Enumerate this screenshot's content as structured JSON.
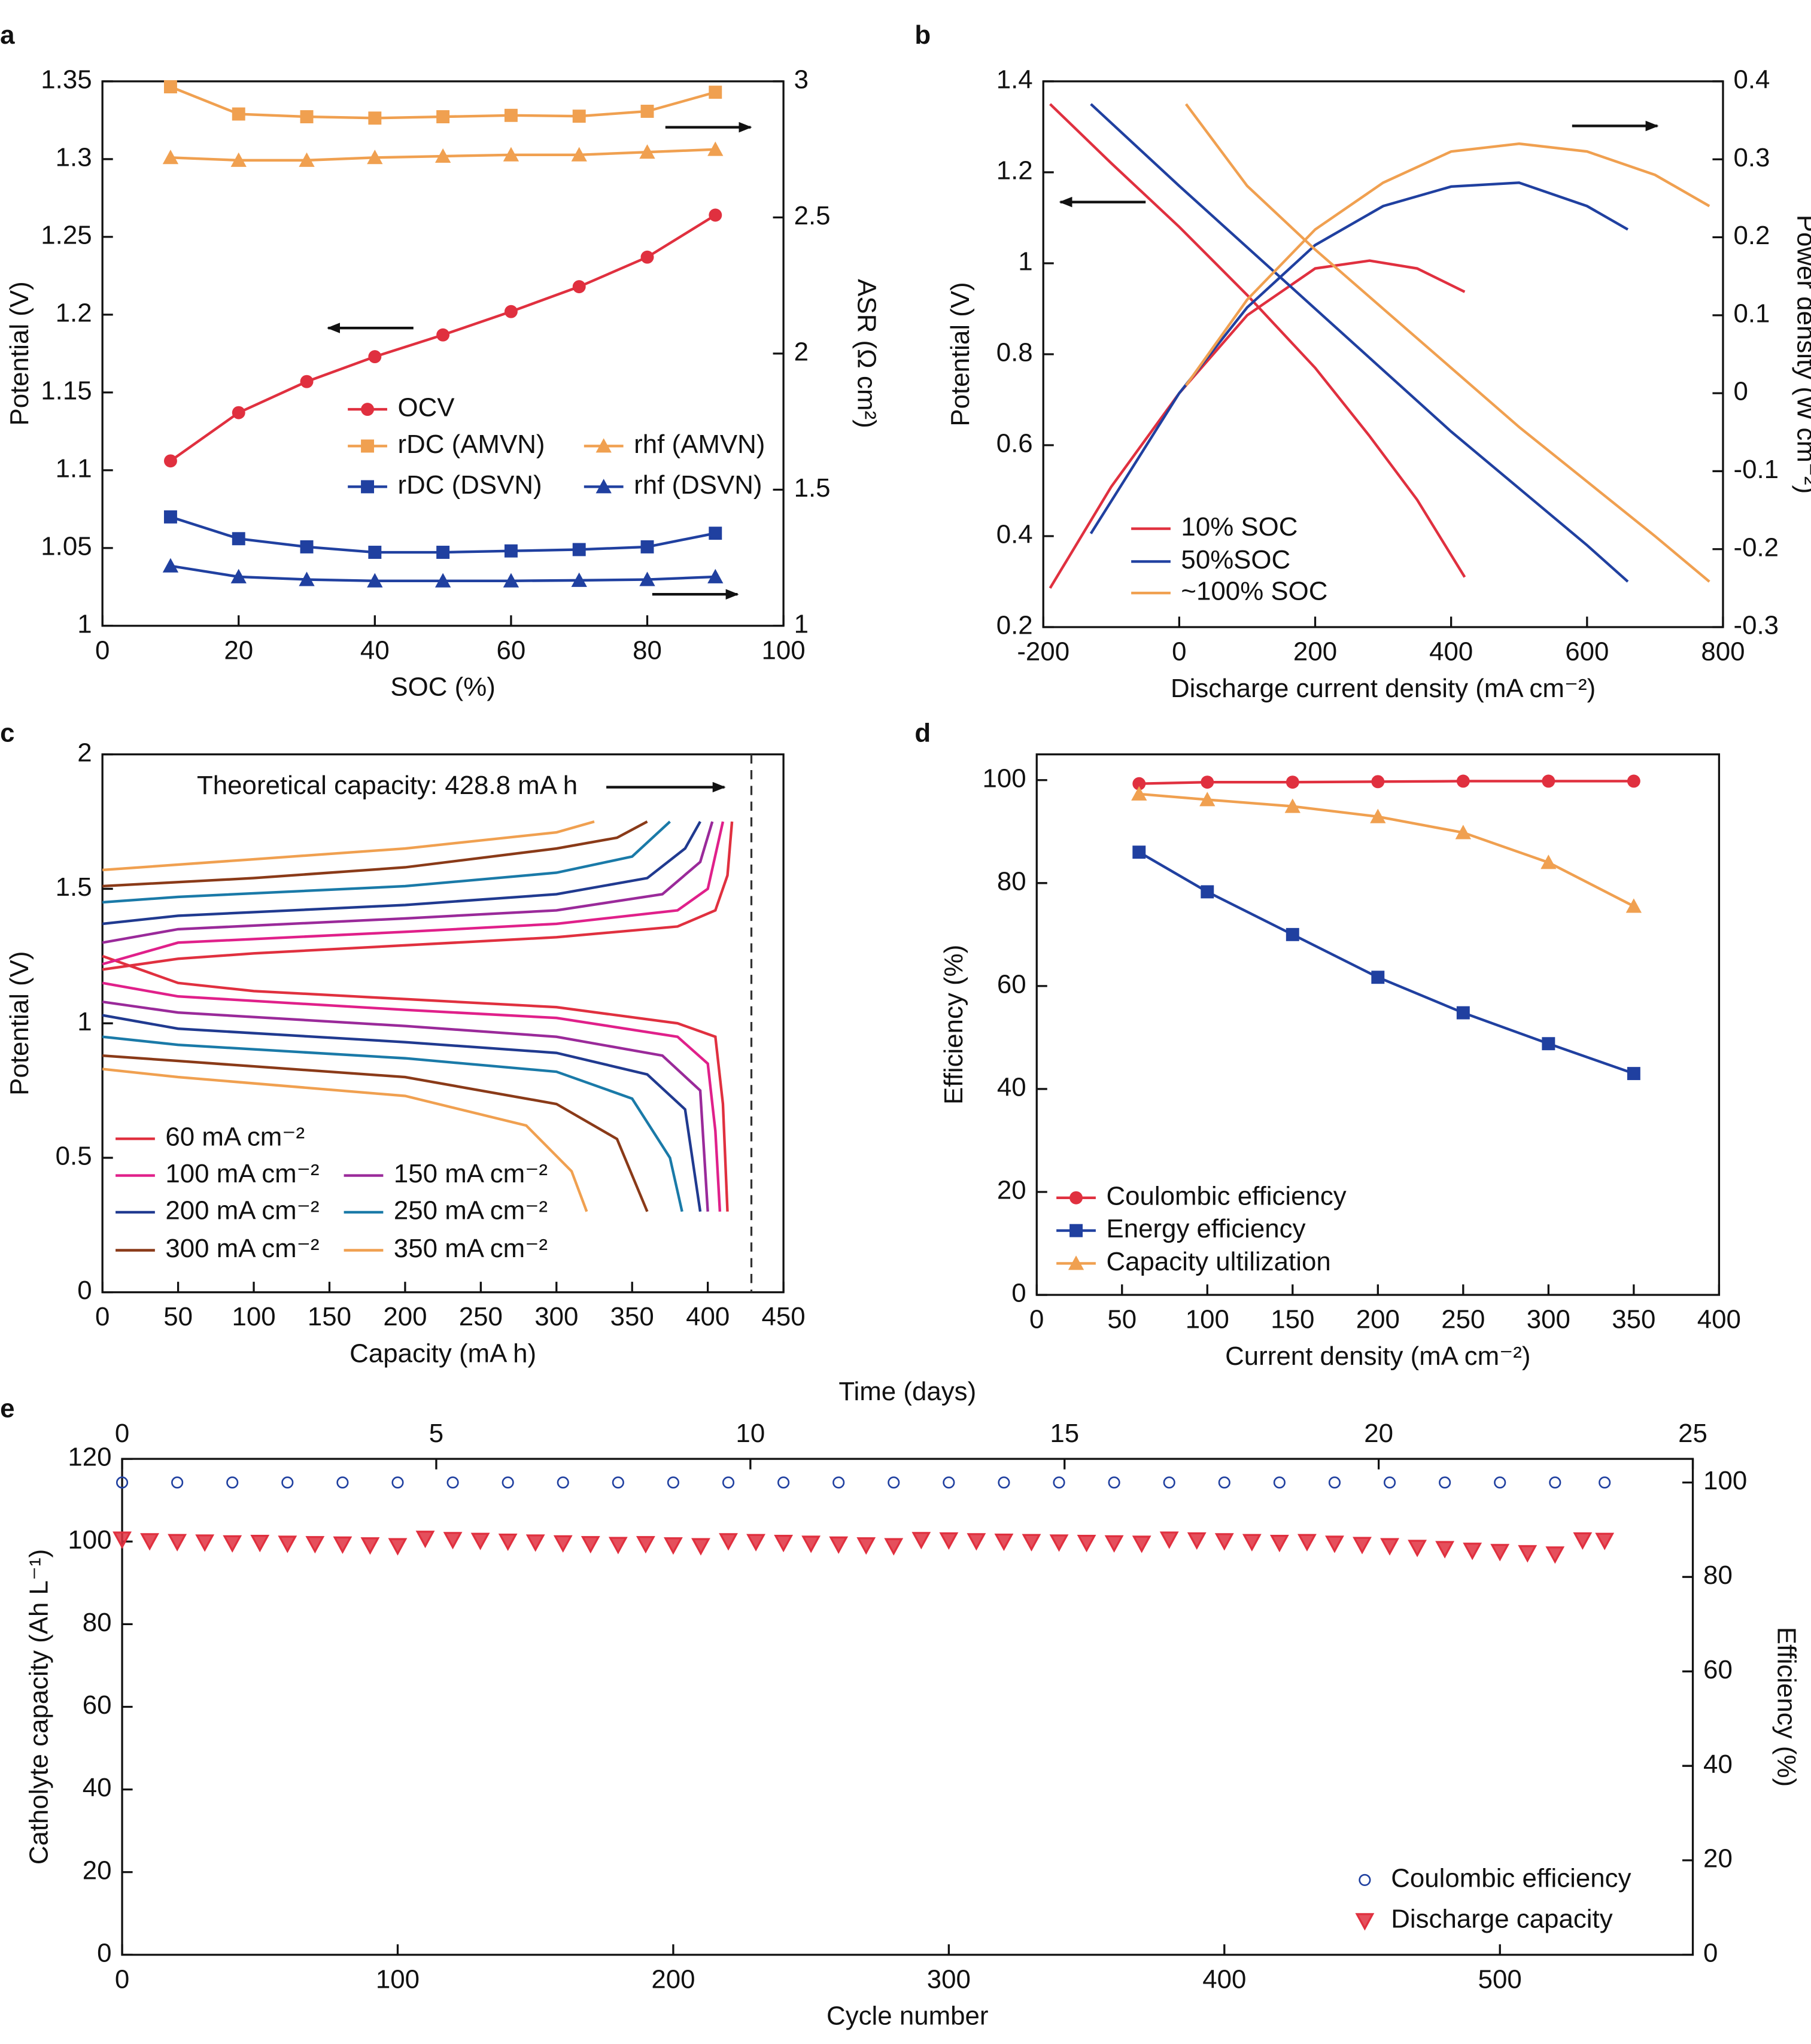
{
  "chart_data": [
    {
      "type": "line",
      "label": "a",
      "xlabel": "SOC (%)",
      "ylabel": "Potential (V)",
      "y2label": "ASR (Ω cm²)",
      "x": [
        10,
        20,
        30,
        40,
        50,
        60,
        70,
        80,
        90
      ],
      "xlim": [
        0,
        100
      ],
      "xticks": [
        0,
        20,
        40,
        60,
        80,
        100
      ],
      "ylim": [
        1,
        1.35
      ],
      "yticks": [
        1,
        1.05,
        1.1,
        1.15,
        1.2,
        1.25,
        1.3,
        1.35
      ],
      "y2lim": [
        1,
        3
      ],
      "y2ticks": [
        1,
        1.5,
        2,
        2.5,
        3
      ],
      "series": [
        {
          "name": "OCV",
          "color": "#e0303f",
          "marker": "circle",
          "values": [
            1.106,
            1.137,
            1.157,
            1.173,
            1.187,
            1.202,
            1.218,
            1.237,
            1.264
          ]
        },
        {
          "name": "rDC (AMVN)",
          "color": "#f0a050",
          "marker": "square",
          "axis": "y2",
          "values": [
            2.98,
            2.88,
            2.87,
            2.865,
            2.87,
            2.875,
            2.872,
            2.89,
            2.96
          ]
        },
        {
          "name": "rhf (AMVN)",
          "color": "#f0a050",
          "marker": "triangle",
          "axis": "y2",
          "values": [
            2.72,
            2.71,
            2.71,
            2.72,
            2.725,
            2.73,
            2.73,
            2.74,
            2.75
          ]
        },
        {
          "name": "rDC (DSVN)",
          "color": "#2040a0",
          "marker": "square",
          "axis": "y2",
          "values": [
            1.4,
            1.32,
            1.29,
            1.27,
            1.27,
            1.275,
            1.28,
            1.29,
            1.34
          ]
        },
        {
          "name": "rhf (DSVN)",
          "color": "#2040a0",
          "marker": "triangle",
          "axis": "y2",
          "values": [
            1.22,
            1.18,
            1.17,
            1.165,
            1.165,
            1.165,
            1.167,
            1.17,
            1.18
          ]
        }
      ]
    },
    {
      "type": "line",
      "label": "b",
      "xlabel": "Discharge current density (mA cm⁻²)",
      "ylabel": "Potential (V)",
      "y2label": "Power density (W cm⁻²)",
      "xlim": [
        -200,
        800
      ],
      "xticks": [
        -200,
        0,
        200,
        400,
        600,
        800
      ],
      "ylim": [
        0.2,
        1.4
      ],
      "yticks": [
        0.2,
        0.4,
        0.6,
        0.8,
        1,
        1.2,
        1.4
      ],
      "y2lim": [
        -0.3,
        0.4
      ],
      "y2ticks": [
        -0.3,
        -0.2,
        -0.1,
        0,
        0.1,
        0.2,
        0.3,
        0.4
      ],
      "series": [
        {
          "name": "10% SOC",
          "color": "#e0303f",
          "x": [
            -190,
            -100,
            0,
            100,
            200,
            280,
            350,
            420
          ],
          "values": [
            1.35,
            1.22,
            1.08,
            0.93,
            0.77,
            0.62,
            0.48,
            0.31
          ],
          "power": [
            -0.25,
            -0.12,
            0,
            0.1,
            0.16,
            0.17,
            0.16,
            0.13
          ]
        },
        {
          "name": "50%SOC",
          "color": "#2040a0",
          "x": [
            -130,
            0,
            100,
            200,
            300,
            400,
            500,
            600,
            660
          ],
          "values": [
            1.35,
            1.17,
            1.035,
            0.9,
            0.765,
            0.63,
            0.505,
            0.38,
            0.3
          ],
          "power": [
            -0.18,
            0,
            0.11,
            0.19,
            0.24,
            0.265,
            0.27,
            0.24,
            0.21
          ]
        },
        {
          "name": "~100% SOC",
          "color": "#f0a050",
          "x": [
            10,
            100,
            200,
            300,
            400,
            500,
            600,
            700,
            780
          ],
          "values": [
            1.35,
            1.17,
            1.03,
            0.9,
            0.77,
            0.64,
            0.52,
            0.4,
            0.3
          ],
          "power": [
            0.01,
            0.12,
            0.21,
            0.27,
            0.31,
            0.32,
            0.31,
            0.28,
            0.24
          ]
        }
      ]
    },
    {
      "type": "line",
      "label": "c",
      "xlabel": "Capacity (mA h)",
      "ylabel": "Potential (V)",
      "annotation": "Theoretical capacity: 428.8 mA h",
      "theoretical_capacity": 428.8,
      "xlim": [
        0,
        450
      ],
      "xticks": [
        0,
        50,
        100,
        150,
        200,
        250,
        300,
        350,
        400,
        450
      ],
      "ylim": [
        0,
        2
      ],
      "yticks": [
        0,
        0.5,
        1,
        1.5,
        2
      ],
      "series": [
        {
          "name": "60 mA cm⁻²",
          "color": "#e0303f",
          "charge": {
            "x": [
              0,
              50,
              100,
              200,
              300,
              380,
              405,
              413,
              416
            ],
            "values": [
              1.2,
              1.24,
              1.26,
              1.29,
              1.32,
              1.36,
              1.42,
              1.55,
              1.75
            ]
          },
          "discharge": {
            "x": [
              0,
              50,
              100,
              200,
              300,
              380,
              405,
              410,
              413
            ],
            "values": [
              1.25,
              1.15,
              1.12,
              1.09,
              1.06,
              1,
              0.95,
              0.7,
              0.3
            ]
          }
        },
        {
          "name": "100 mA cm⁻²",
          "color": "#e0208a",
          "charge": {
            "x": [
              0,
              50,
              200,
              300,
              380,
              400,
              410
            ],
            "values": [
              1.22,
              1.3,
              1.34,
              1.37,
              1.42,
              1.5,
              1.75
            ]
          },
          "discharge": {
            "x": [
              0,
              50,
              200,
              300,
              380,
              400,
              405,
              408
            ],
            "values": [
              1.15,
              1.1,
              1.05,
              1.02,
              0.95,
              0.85,
              0.6,
              0.3
            ]
          }
        },
        {
          "name": "150 mA cm⁻²",
          "color": "#9a2a9a",
          "charge": {
            "x": [
              0,
              50,
              200,
              300,
              370,
              395,
              403
            ],
            "values": [
              1.3,
              1.35,
              1.39,
              1.42,
              1.48,
              1.6,
              1.75
            ]
          },
          "discharge": {
            "x": [
              0,
              50,
              200,
              300,
              370,
              395,
              400
            ],
            "values": [
              1.08,
              1.04,
              0.99,
              0.95,
              0.88,
              0.75,
              0.3
            ]
          }
        },
        {
          "name": "200 mA cm⁻²",
          "color": "#203a90",
          "charge": {
            "x": [
              0,
              50,
              200,
              300,
              360,
              385,
              395
            ],
            "values": [
              1.37,
              1.4,
              1.44,
              1.48,
              1.54,
              1.65,
              1.75
            ]
          },
          "discharge": {
            "x": [
              0,
              50,
              200,
              300,
              360,
              385,
              395
            ],
            "values": [
              1.03,
              0.98,
              0.93,
              0.89,
              0.81,
              0.68,
              0.3
            ]
          }
        },
        {
          "name": "250 mA cm⁻²",
          "color": "#1a7aa8",
          "charge": {
            "x": [
              0,
              50,
              200,
              300,
              350,
              375
            ],
            "values": [
              1.45,
              1.47,
              1.51,
              1.56,
              1.62,
              1.75
            ]
          },
          "discharge": {
            "x": [
              0,
              50,
              200,
              300,
              350,
              375,
              383
            ],
            "values": [
              0.95,
              0.92,
              0.87,
              0.82,
              0.72,
              0.5,
              0.3
            ]
          }
        },
        {
          "name": "300 mA cm⁻²",
          "color": "#8a3a18",
          "charge": {
            "x": [
              0,
              100,
              200,
              300,
              340,
              360
            ],
            "values": [
              1.51,
              1.54,
              1.58,
              1.65,
              1.69,
              1.75
            ]
          },
          "discharge": {
            "x": [
              0,
              50,
              200,
              300,
              340,
              360
            ],
            "values": [
              0.88,
              0.86,
              0.8,
              0.7,
              0.57,
              0.3
            ]
          }
        },
        {
          "name": "350 mA cm⁻²",
          "color": "#f0a050",
          "charge": {
            "x": [
              0,
              100,
              200,
              300,
              325
            ],
            "values": [
              1.57,
              1.61,
              1.65,
              1.71,
              1.75
            ]
          },
          "discharge": {
            "x": [
              0,
              50,
              200,
              280,
              310,
              320
            ],
            "values": [
              0.83,
              0.8,
              0.73,
              0.62,
              0.45,
              0.3
            ]
          }
        }
      ]
    },
    {
      "type": "line",
      "label": "d",
      "xlabel": "Current density (mA cm⁻²)",
      "ylabel": "Efficiency (%)",
      "x": [
        60,
        100,
        150,
        200,
        250,
        300,
        350
      ],
      "xlim": [
        0,
        400
      ],
      "xticks": [
        0,
        50,
        100,
        150,
        200,
        250,
        300,
        350,
        400
      ],
      "ylim": [
        0,
        105
      ],
      "yticks": [
        0,
        20,
        40,
        60,
        80,
        100
      ],
      "series": [
        {
          "name": "Coulombic efficiency",
          "color": "#e0303f",
          "marker": "circle",
          "values": [
            99.3,
            99.6,
            99.6,
            99.7,
            99.8,
            99.8,
            99.8
          ]
        },
        {
          "name": "Energy efficiency",
          "color": "#2040a0",
          "marker": "square",
          "values": [
            86,
            78.3,
            70,
            61.7,
            54.8,
            48.8,
            43
          ]
        },
        {
          "name": "Capacity ultilization",
          "color": "#f0a050",
          "marker": "triangle",
          "values": [
            97.3,
            96.2,
            94.9,
            92.9,
            89.8,
            84,
            75.5
          ]
        }
      ]
    },
    {
      "type": "scatter",
      "label": "e",
      "xlabel": "Cycle number",
      "x2label": "Time (days)",
      "ylabel": "Catholyte capacity (Ah L⁻¹)",
      "y2label": "Efficiency (%)",
      "xlim": [
        0,
        570
      ],
      "xticks": [
        0,
        100,
        200,
        300,
        400,
        500
      ],
      "x2lim": [
        0,
        25
      ],
      "x2ticks": [
        0,
        5,
        10,
        15,
        20,
        25
      ],
      "ylim": [
        0,
        120
      ],
      "yticks": [
        0,
        20,
        40,
        60,
        80,
        100,
        120
      ],
      "y2lim": [
        0,
        105
      ],
      "y2ticks": [
        0,
        20,
        40,
        60,
        80,
        100
      ],
      "series": [
        {
          "name": "Coulombic efficiency",
          "color": "#2040a0",
          "marker": "open-circle",
          "axis": "y2",
          "x": [
            0,
            20,
            40,
            60,
            80,
            100,
            120,
            140,
            160,
            180,
            200,
            220,
            240,
            260,
            280,
            300,
            320,
            340,
            360,
            380,
            400,
            420,
            440,
            460,
            480,
            500,
            520,
            538
          ],
          "values": [
            100,
            100,
            100,
            100,
            100,
            100,
            100,
            100,
            100,
            100,
            100,
            100,
            100,
            100,
            100,
            100,
            100,
            100,
            100,
            100,
            100,
            100,
            100,
            100,
            100,
            100,
            100,
            100
          ]
        },
        {
          "name": "Discharge capacity",
          "color": "#e0303f",
          "marker": "triangle-down",
          "x": [
            0,
            10,
            20,
            30,
            40,
            50,
            60,
            70,
            80,
            90,
            100,
            110,
            120,
            130,
            140,
            150,
            160,
            170,
            180,
            190,
            200,
            210,
            220,
            230,
            240,
            250,
            260,
            270,
            280,
            290,
            300,
            310,
            320,
            330,
            340,
            350,
            360,
            370,
            380,
            390,
            400,
            410,
            420,
            430,
            440,
            450,
            460,
            470,
            480,
            490,
            500,
            510,
            520,
            530,
            538
          ],
          "values": [
            100.6,
            100.2,
            100.0,
            99.9,
            99.7,
            99.8,
            99.6,
            99.5,
            99.4,
            99.2,
            99.0,
            100.8,
            100.5,
            100.3,
            100.1,
            99.9,
            99.7,
            99.5,
            99.3,
            99.5,
            99.2,
            99.0,
            100.2,
            100.0,
            99.8,
            99.6,
            99.4,
            99.2,
            99.0,
            100.5,
            100.4,
            100.2,
            100.1,
            100.0,
            99.9,
            99.8,
            99.7,
            99.6,
            100.6,
            100.4,
            100.2,
            100.0,
            99.8,
            100.0,
            99.6,
            99.3,
            99.0,
            98.6,
            98.3,
            97.9,
            97.6,
            97.3,
            97.0,
            100.4,
            100.3
          ]
        }
      ]
    }
  ]
}
